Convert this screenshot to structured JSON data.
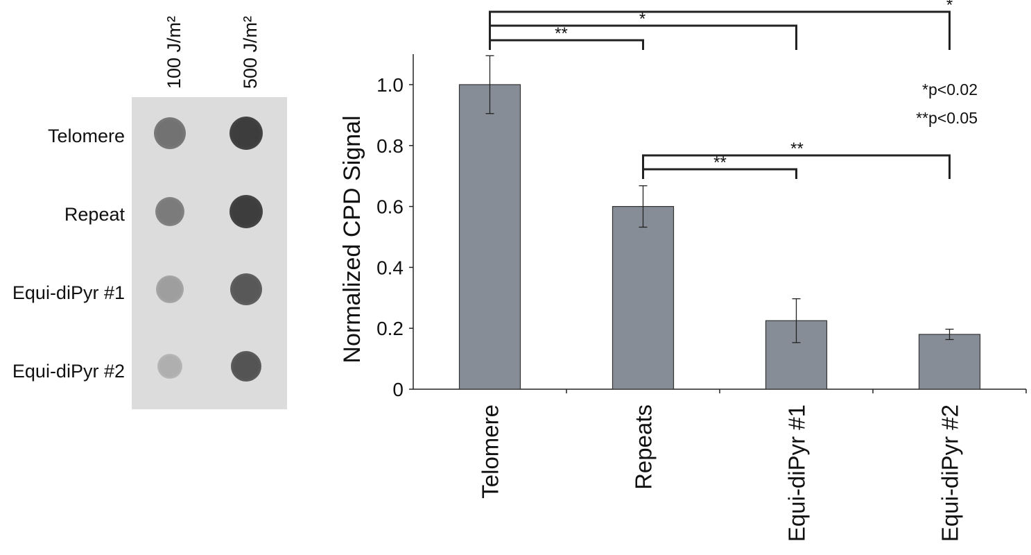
{
  "blot": {
    "column_labels": [
      "100 J/m²",
      "500 J/m²"
    ],
    "row_labels": [
      "Telomere",
      "Repeat",
      "Equi-diPyr #1",
      "Equi-diPyr #2"
    ],
    "dot_intensity": [
      [
        0.55,
        0.85
      ],
      [
        0.5,
        0.85
      ],
      [
        0.3,
        0.7
      ],
      [
        0.2,
        0.72
      ]
    ]
  },
  "chart_data": {
    "type": "bar",
    "categories": [
      "Telomere",
      "Repeats",
      "Equi-diPyr #1",
      "Equi-diPyr #2"
    ],
    "values": [
      1.0,
      0.6,
      0.225,
      0.18
    ],
    "errors": [
      0.095,
      0.068,
      0.072,
      0.017
    ],
    "ylabel": "Normalized CPD Signal",
    "ylim": [
      0,
      1.1
    ],
    "yticks": [
      "0",
      "0.2",
      "0.4",
      "0.6",
      "0.8",
      "1.0"
    ],
    "bar_color": "#868d96",
    "legend": [
      "*p<0.02",
      "**p<0.05"
    ],
    "significance": [
      {
        "from": "Telomere",
        "to": "Equi-diPyr #2",
        "label": "*"
      },
      {
        "from": "Telomere",
        "to": "Equi-diPyr #1",
        "label": "*"
      },
      {
        "from": "Telomere",
        "to": "Repeats",
        "label": "**"
      },
      {
        "from": "Repeats",
        "to": "Equi-diPyr #2",
        "label": "**"
      },
      {
        "from": "Repeats",
        "to": "Equi-diPyr #1",
        "label": "**"
      }
    ]
  }
}
